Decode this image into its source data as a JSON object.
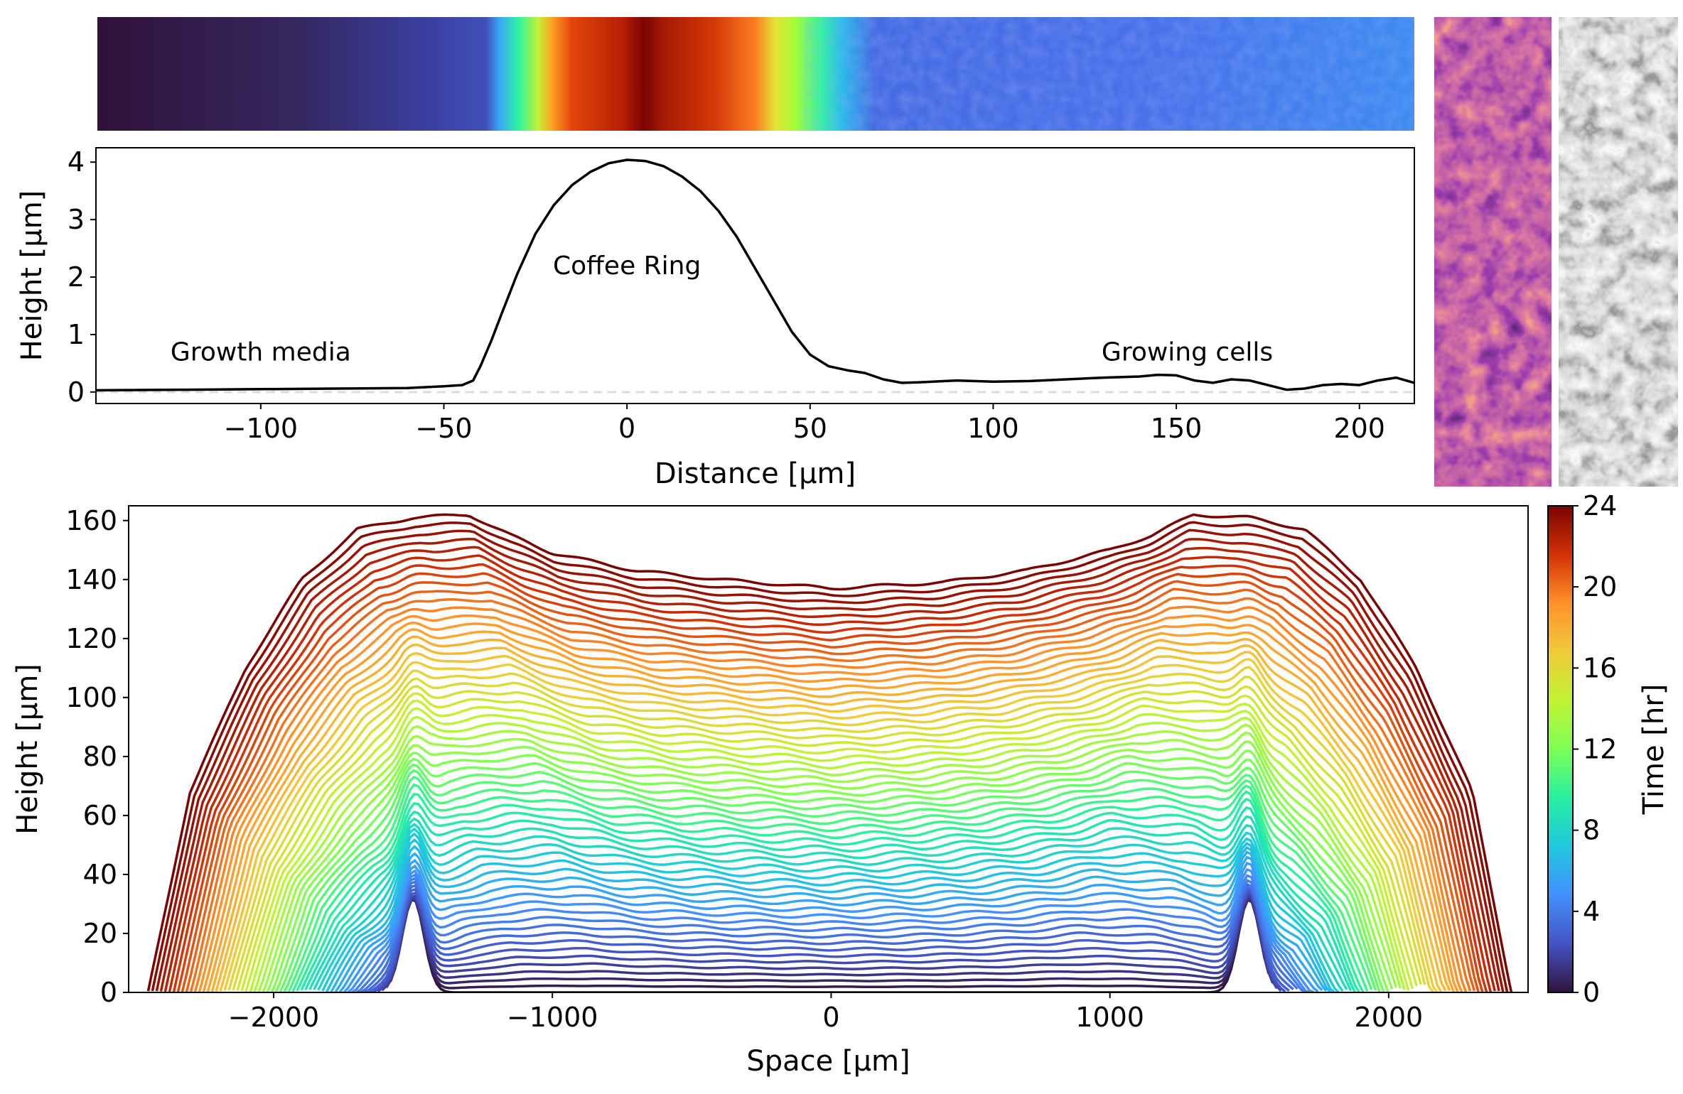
{
  "chart_data": [
    {
      "type": "image",
      "role": "height-map-strip",
      "colormap": "turbo"
    },
    {
      "type": "line",
      "xlabel": "Distance [μm]",
      "ylabel": "Height [μm]",
      "xlim": [
        -145,
        215
      ],
      "ylim": [
        -0.2,
        4.25
      ],
      "xticks": [
        -100,
        -50,
        0,
        50,
        100,
        150,
        200
      ],
      "xtick_labels": [
        "−100",
        "−50",
        "0",
        "50",
        "100",
        "150",
        "200"
      ],
      "yticks": [
        0,
        1,
        2,
        3,
        4
      ],
      "baseline": {
        "y": 0,
        "style": "dashed",
        "color": "#dddddd"
      },
      "series": [
        {
          "color": "#000000",
          "x": [
            -145,
            -120,
            -100,
            -80,
            -60,
            -50,
            -45,
            -42,
            -40,
            -37,
            -34,
            -30,
            -25,
            -20,
            -15,
            -10,
            -5,
            0,
            5,
            10,
            15,
            20,
            25,
            30,
            35,
            40,
            45,
            50,
            55,
            60,
            65,
            70,
            75,
            80,
            90,
            100,
            110,
            120,
            130,
            140,
            145,
            150,
            155,
            160,
            165,
            170,
            175,
            180,
            185,
            190,
            195,
            200,
            205,
            210,
            215
          ],
          "y": [
            0.03,
            0.04,
            0.05,
            0.06,
            0.07,
            0.1,
            0.12,
            0.2,
            0.45,
            0.9,
            1.4,
            2.05,
            2.75,
            3.25,
            3.6,
            3.83,
            3.98,
            4.04,
            4.02,
            3.93,
            3.75,
            3.5,
            3.15,
            2.7,
            2.15,
            1.6,
            1.05,
            0.65,
            0.45,
            0.38,
            0.33,
            0.22,
            0.16,
            0.17,
            0.2,
            0.18,
            0.19,
            0.22,
            0.25,
            0.27,
            0.3,
            0.29,
            0.2,
            0.16,
            0.22,
            0.2,
            0.12,
            0.04,
            0.06,
            0.12,
            0.14,
            0.12,
            0.2,
            0.25,
            0.16
          ]
        }
      ],
      "annotations": [
        {
          "text": "Growth media",
          "x": -100,
          "y": 0.55
        },
        {
          "text": "Coffee Ring",
          "x": 0,
          "y": 2.05
        },
        {
          "text": "Growing cells",
          "x": 153,
          "y": 0.55
        }
      ]
    },
    {
      "type": "image",
      "role": "top-view-panels",
      "panels": [
        {
          "colormap": "inferno"
        },
        {
          "colormap": "gray"
        }
      ]
    },
    {
      "type": "line",
      "xlabel": "Space [μm]",
      "ylabel": "Height [μm]",
      "xlim": [
        -2520,
        2500
      ],
      "ylim": [
        0,
        165
      ],
      "xticks": [
        -2000,
        -1000,
        0,
        1000,
        2000
      ],
      "xtick_labels": [
        "−2000",
        "−1000",
        "0",
        "1000",
        "2000"
      ],
      "yticks": [
        0,
        20,
        40,
        60,
        80,
        100,
        120,
        140,
        160
      ],
      "series_count": 60,
      "series_description": "family of height profiles coloured by time",
      "time_range_hr": [
        0,
        24
      ],
      "initial_peaks_x": [
        -1500,
        1500
      ],
      "final_profile": {
        "x": [
          -2450,
          -2300,
          -2100,
          -1900,
          -1700,
          -1500,
          -1300,
          -1150,
          -1000,
          -700,
          -400,
          0,
          400,
          700,
          1000,
          1150,
          1300,
          1500,
          1700,
          1900,
          2100,
          2300,
          2440
        ],
        "y": [
          0,
          68,
          110,
          140,
          157,
          161,
          162,
          155,
          149,
          143,
          140,
          137,
          139,
          143,
          150,
          155,
          162,
          161,
          157,
          140,
          110,
          68,
          0
        ]
      },
      "colorbar": {
        "label": "Time [hr]",
        "colormap": "turbo",
        "range": [
          0,
          24
        ],
        "ticks": [
          0,
          4,
          8,
          12,
          16,
          20,
          24
        ]
      }
    }
  ]
}
